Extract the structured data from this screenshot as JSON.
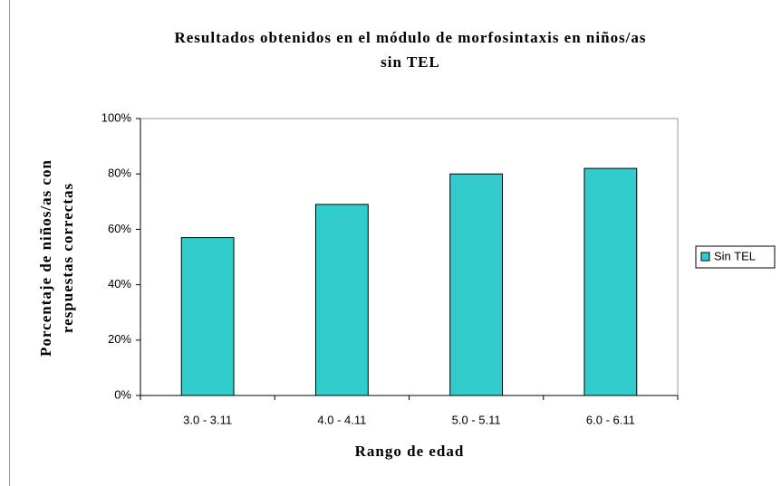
{
  "chart_data": {
    "type": "bar",
    "title": [
      "Resultados obtenidos en el módulo de morfosintaxis en niños/as",
      "sin TEL"
    ],
    "y_label": [
      "Porcentaje de niños/as con",
      "respuestas correctas"
    ],
    "x_label": "Rango de edad",
    "categories": [
      "3.0 - 3.11",
      "4.0 - 4.11",
      "5.0 - 5.11",
      "6.0 - 6.11"
    ],
    "series": [
      {
        "name": "Sin TEL",
        "color": "#33cccc",
        "values": [
          57,
          69,
          80,
          82
        ]
      }
    ],
    "ylim": [
      0,
      100
    ],
    "yticks": [
      {
        "value": 0,
        "label": "0%"
      },
      {
        "value": 20,
        "label": "20%"
      },
      {
        "value": 40,
        "label": "40%"
      },
      {
        "value": 60,
        "label": "60%"
      },
      {
        "value": 80,
        "label": "80%"
      },
      {
        "value": 100,
        "label": "100%"
      }
    ],
    "grid": false,
    "legend": "right"
  }
}
